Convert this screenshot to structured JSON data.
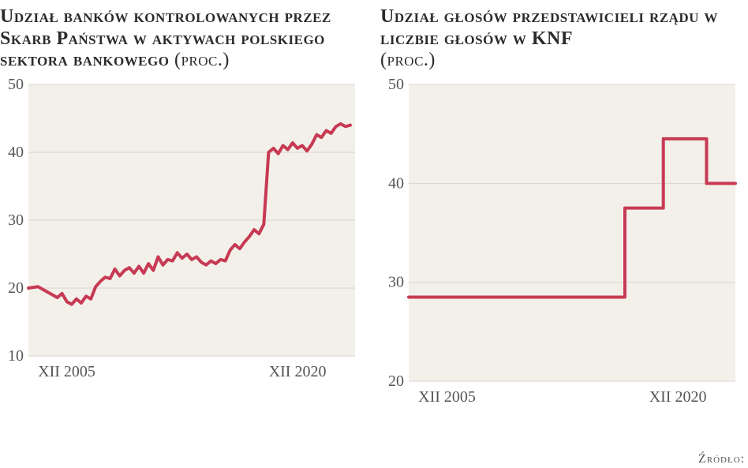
{
  "background_color": "#ffffff",
  "plot_background": "#f3f0ea",
  "grid_color": "#d9d5cd",
  "axis_text_color": "#555555",
  "title_color": "#2b2b2b",
  "line_color": "#c73a53",
  "line_width": 4,
  "title_fontsize": 24,
  "axis_fontsize": 20,
  "source_label": "Źródło: NI",
  "left": {
    "type": "line",
    "title_main": "Udział banków kontrolowanych przez Skarb Państwa w aktywach polskiego sektora bankowego",
    "title_unit": " (proc.)",
    "ylim": [
      10,
      50
    ],
    "yticks": [
      10,
      20,
      30,
      40,
      50
    ],
    "xlim": [
      0,
      68
    ],
    "xtick_labels": [
      {
        "pos": 2,
        "text": "XII 2005"
      },
      {
        "pos": 62,
        "text": "XII 2020"
      }
    ],
    "series": [
      {
        "x": 0,
        "y": 20
      },
      {
        "x": 2,
        "y": 20.2
      },
      {
        "x": 4,
        "y": 19.4
      },
      {
        "x": 6,
        "y": 18.6
      },
      {
        "x": 7,
        "y": 19.2
      },
      {
        "x": 8,
        "y": 18.0
      },
      {
        "x": 9,
        "y": 17.6
      },
      {
        "x": 10,
        "y": 18.4
      },
      {
        "x": 11,
        "y": 17.8
      },
      {
        "x": 12,
        "y": 18.8
      },
      {
        "x": 13,
        "y": 18.4
      },
      {
        "x": 14,
        "y": 20.2
      },
      {
        "x": 15,
        "y": 21.0
      },
      {
        "x": 16,
        "y": 21.6
      },
      {
        "x": 17,
        "y": 21.4
      },
      {
        "x": 18,
        "y": 22.8
      },
      {
        "x": 19,
        "y": 21.8
      },
      {
        "x": 20,
        "y": 22.6
      },
      {
        "x": 21,
        "y": 23.0
      },
      {
        "x": 22,
        "y": 22.2
      },
      {
        "x": 23,
        "y": 23.2
      },
      {
        "x": 24,
        "y": 22.2
      },
      {
        "x": 25,
        "y": 23.6
      },
      {
        "x": 26,
        "y": 22.6
      },
      {
        "x": 27,
        "y": 24.6
      },
      {
        "x": 28,
        "y": 23.4
      },
      {
        "x": 29,
        "y": 24.2
      },
      {
        "x": 30,
        "y": 24.0
      },
      {
        "x": 31,
        "y": 25.2
      },
      {
        "x": 32,
        "y": 24.4
      },
      {
        "x": 33,
        "y": 25.0
      },
      {
        "x": 34,
        "y": 24.2
      },
      {
        "x": 35,
        "y": 24.6
      },
      {
        "x": 36,
        "y": 23.8
      },
      {
        "x": 37,
        "y": 23.4
      },
      {
        "x": 38,
        "y": 24.0
      },
      {
        "x": 39,
        "y": 23.6
      },
      {
        "x": 40,
        "y": 24.2
      },
      {
        "x": 41,
        "y": 24.0
      },
      {
        "x": 42,
        "y": 25.6
      },
      {
        "x": 43,
        "y": 26.4
      },
      {
        "x": 44,
        "y": 25.8
      },
      {
        "x": 45,
        "y": 26.8
      },
      {
        "x": 46,
        "y": 27.6
      },
      {
        "x": 47,
        "y": 28.6
      },
      {
        "x": 48,
        "y": 28.0
      },
      {
        "x": 49,
        "y": 29.4
      },
      {
        "x": 50,
        "y": 40.0
      },
      {
        "x": 51,
        "y": 40.6
      },
      {
        "x": 52,
        "y": 39.8
      },
      {
        "x": 53,
        "y": 41.0
      },
      {
        "x": 54,
        "y": 40.4
      },
      {
        "x": 55,
        "y": 41.4
      },
      {
        "x": 56,
        "y": 40.6
      },
      {
        "x": 57,
        "y": 41.0
      },
      {
        "x": 58,
        "y": 40.2
      },
      {
        "x": 59,
        "y": 41.2
      },
      {
        "x": 60,
        "y": 42.6
      },
      {
        "x": 61,
        "y": 42.2
      },
      {
        "x": 62,
        "y": 43.2
      },
      {
        "x": 63,
        "y": 42.8
      },
      {
        "x": 64,
        "y": 43.8
      },
      {
        "x": 65,
        "y": 44.2
      },
      {
        "x": 66,
        "y": 43.8
      },
      {
        "x": 67,
        "y": 44.0
      }
    ]
  },
  "right": {
    "type": "step",
    "title_main": "Udział głosów przedstawicieli rządu w liczbie głosów w KNF",
    "title_unit": " (proc.)",
    "ylim": [
      20,
      50
    ],
    "yticks": [
      20,
      30,
      40,
      50
    ],
    "xlim": [
      0,
      68
    ],
    "xtick_labels": [
      {
        "pos": 2,
        "text": "XII 2005"
      },
      {
        "pos": 62,
        "text": "XII 2020"
      }
    ],
    "series": [
      {
        "x": 0,
        "y": 28.5
      },
      {
        "x": 45,
        "y": 28.5
      },
      {
        "x": 45,
        "y": 37.5
      },
      {
        "x": 53,
        "y": 37.5
      },
      {
        "x": 53,
        "y": 44.5
      },
      {
        "x": 62,
        "y": 44.5
      },
      {
        "x": 62,
        "y": 40.0
      },
      {
        "x": 68,
        "y": 40.0
      }
    ]
  }
}
